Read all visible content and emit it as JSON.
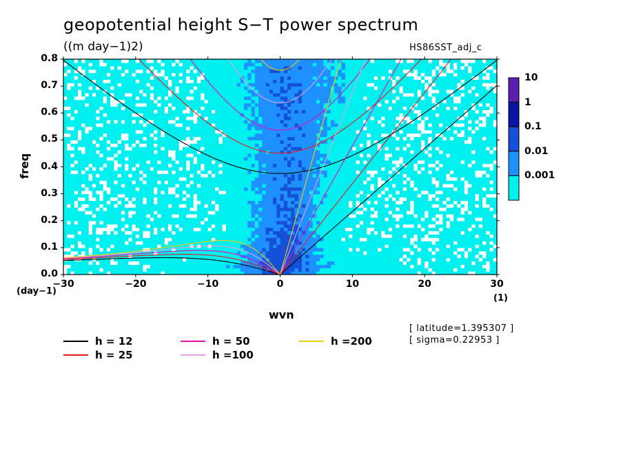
{
  "chart_data": {
    "type": "heatmap",
    "title": "geopotential height S−T power spectrum",
    "units_label": "((m day−1)2)",
    "run_name": "HS86SST_adj_c",
    "xlabel": "wvn",
    "ylabel": "freq",
    "x_unit": "(1)",
    "y_unit": "(day−1)",
    "xlim": [
      -30,
      30
    ],
    "ylim": [
      0,
      0.8
    ],
    "xticks": [
      "−30",
      "−20",
      "−10",
      "0",
      "10",
      "20",
      "30"
    ],
    "yticks": [
      "0.0",
      "0.1",
      "0.2",
      "0.3",
      "0.4",
      "0.5",
      "0.6",
      "0.7",
      "0.8"
    ],
    "colorbar": {
      "levels": [
        "10",
        "1",
        "0.1",
        "0.01",
        "0.001"
      ],
      "colors": [
        "#5a1fb0",
        "#0a15a8",
        "#1450d8",
        "#1e90ff",
        "#00f0f0"
      ]
    },
    "dispersion_curves": [
      {
        "label": "h = 12",
        "h": 12,
        "color": "#000000"
      },
      {
        "label": "h = 25",
        "h": 25,
        "color": "#e41a1c"
      },
      {
        "label": "h = 50",
        "h": 50,
        "color": "#e010b0"
      },
      {
        "label": "h =100",
        "h": 100,
        "color": "#e8a0e0"
      },
      {
        "label": "h =200",
        "h": 200,
        "color": "#f0d000"
      }
    ],
    "annotations": [
      "[ latitude=1.395307 ]",
      "[ sigma=0.22953 ]"
    ]
  }
}
